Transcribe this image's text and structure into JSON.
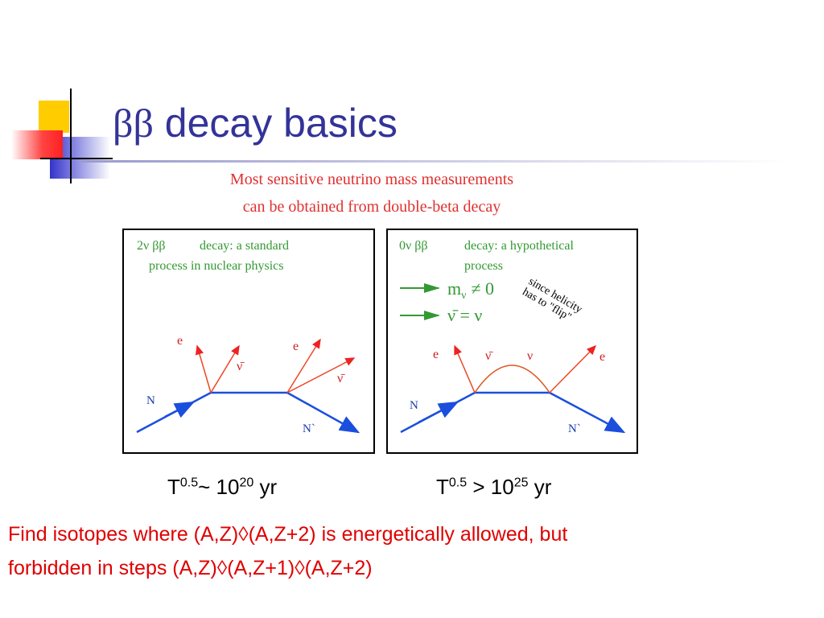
{
  "title": {
    "symbol": "ββ",
    "text": "decay basics"
  },
  "figure": {
    "caption": [
      "Most sensitive neutrino mass measurements",
      "can be obtained from double-beta decay"
    ],
    "left_panel": {
      "heading": [
        "2ν ββ",
        "decay: a standard",
        "process in nuclear physics"
      ],
      "labels": [
        "e",
        "ν̄",
        "e",
        "ν̄",
        "N",
        "N`"
      ]
    },
    "right_panel": {
      "heading": [
        "0ν ββ",
        "decay: a hypothetical",
        "process"
      ],
      "conditions": [
        "m",
        "ν",
        "≠ 0",
        "ν̄ = ν"
      ],
      "note": [
        "since helicity",
        "has to \"flip\""
      ],
      "labels": [
        "e",
        "ν̄",
        "ν",
        "e",
        "N",
        "N`"
      ]
    }
  },
  "half_lives": [
    {
      "base": "T",
      "exp": "0.5",
      "rel": "~ 10",
      "power": "20",
      "unit": " yr"
    },
    {
      "base": "T",
      "exp": "0.5",
      "rel": " > 10",
      "power": "25",
      "unit": " yr"
    }
  ],
  "body": [
    "Find isotopes where (A,Z)◊(A,Z+2) is energetically allowed, but",
    "forbidden in steps (A,Z)◊(A,Z+1)◊(A,Z+2)"
  ]
}
